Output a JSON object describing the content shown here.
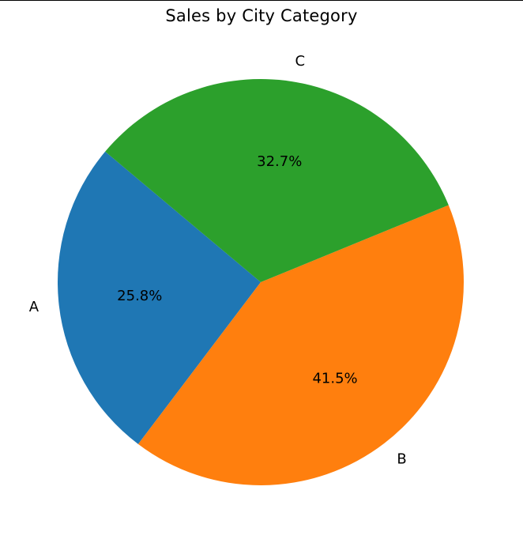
{
  "chart_data": {
    "type": "pie",
    "title": "Sales by City Category",
    "categories": [
      "A",
      "B",
      "C"
    ],
    "values": [
      25.8,
      41.5,
      32.7
    ],
    "labels": [
      "25.8%",
      "41.5%",
      "32.7%"
    ],
    "colors": [
      "#1f77b4",
      "#ff7f0e",
      "#2ca02c"
    ],
    "start_angle_deg": 140,
    "direction": "counterclockwise",
    "legend": "none"
  }
}
